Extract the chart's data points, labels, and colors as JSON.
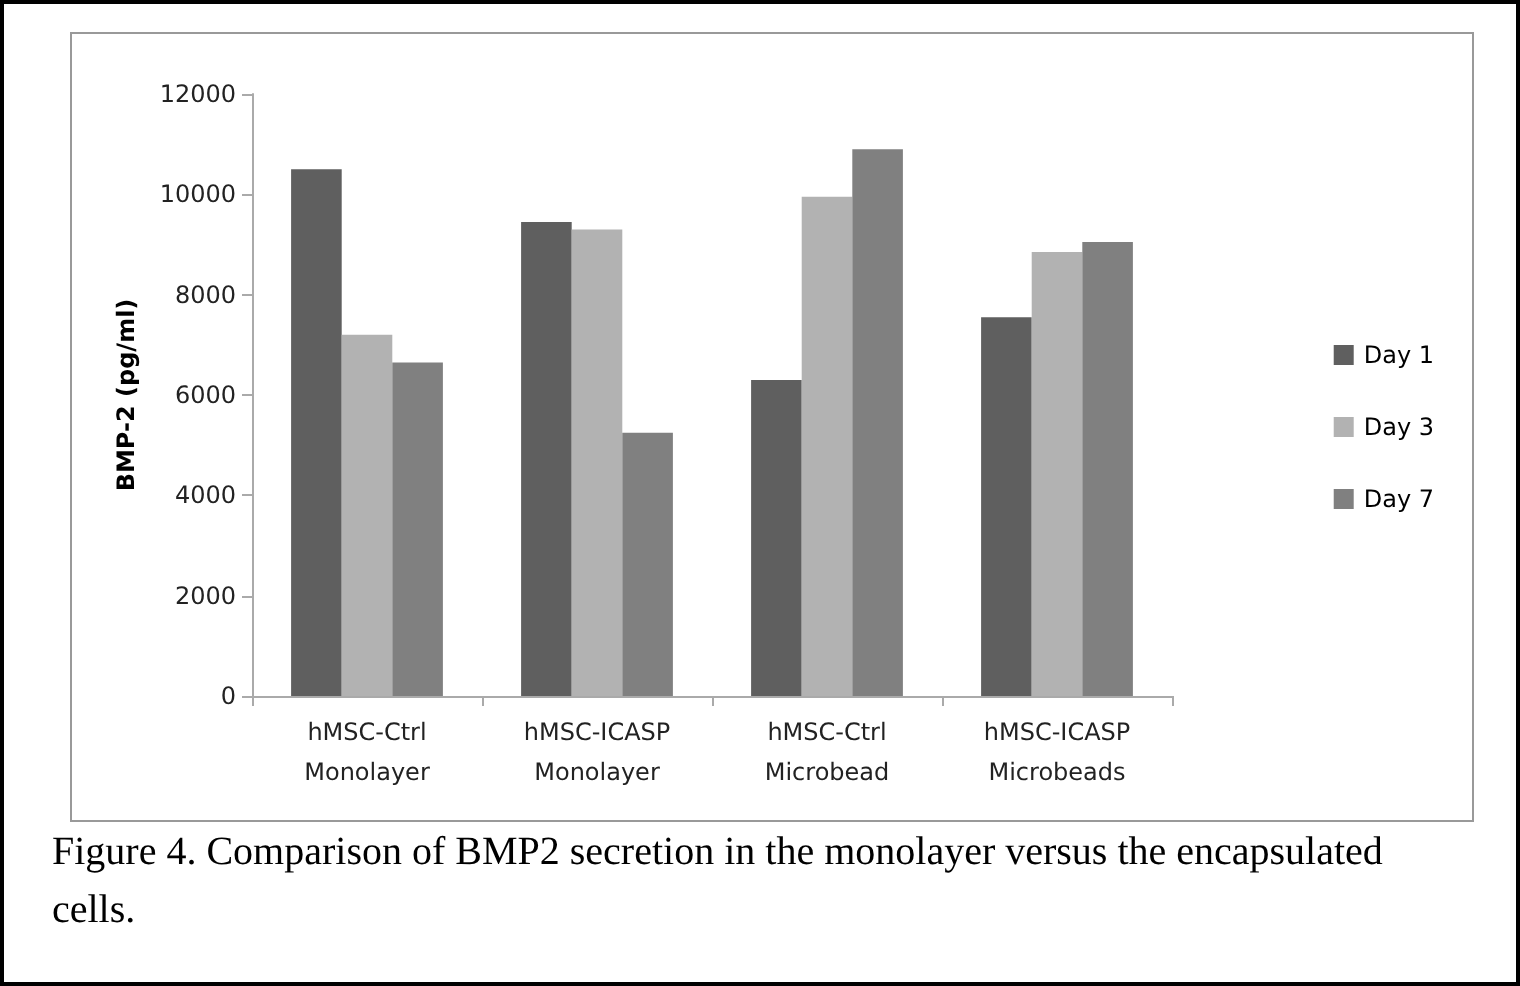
{
  "chart_data": {
    "type": "bar",
    "ylabel": "BMP-2 (pg/ml)",
    "categories": [
      "hMSC-Ctrl\nMonolayer",
      "hMSC-ICASP\nMonolayer",
      "hMSC-Ctrl\nMicrobead",
      "hMSC-ICASP\nMicrobeads"
    ],
    "series": [
      {
        "name": "Day 1",
        "color": "#5f5f5f",
        "values": [
          10500,
          9450,
          6300,
          7550
        ]
      },
      {
        "name": "Day 3",
        "color": "#b2b2b2",
        "values": [
          7200,
          9300,
          9950,
          8850
        ]
      },
      {
        "name": "Day 7",
        "color": "#808080",
        "values": [
          6650,
          5250,
          10900,
          9050
        ]
      }
    ],
    "ylim": [
      0,
      12000
    ],
    "yticks": [
      0,
      2000,
      4000,
      6000,
      8000,
      10000,
      12000
    ],
    "grid": false,
    "legend": "right",
    "annotations": [
      "Figure 4. Comparison of BMP2 secretion in the monolayer versus the encapsulated cells."
    ]
  }
}
